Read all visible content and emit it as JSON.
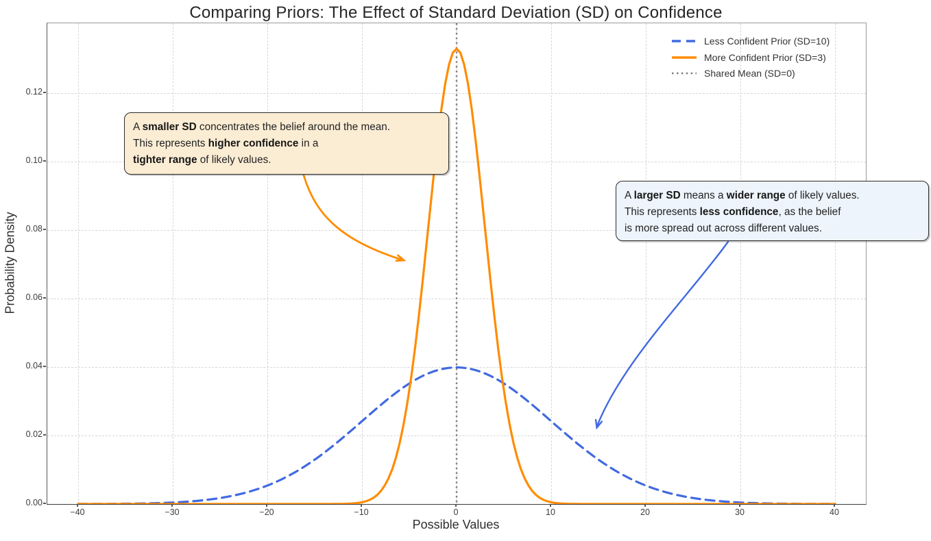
{
  "chart_data": {
    "type": "line",
    "title": "Comparing Priors: The Effect of Standard Deviation (SD) on Confidence",
    "xlabel": "Possible Values",
    "ylabel": "Probability Density",
    "xlim": [
      -43.26,
      43.26
    ],
    "ylim": [
      0,
      0.1404
    ],
    "xticks": [
      -40,
      -30,
      -20,
      -10,
      0,
      10,
      20,
      30,
      40
    ],
    "xtick_labels": [
      "−40",
      "−30",
      "−20",
      "−10",
      "0",
      "10",
      "20",
      "30",
      "40"
    ],
    "yticks": [
      0.0,
      0.02,
      0.04,
      0.06,
      0.08,
      0.1,
      0.12
    ],
    "ytick_labels": [
      "0.00",
      "0.02",
      "0.04",
      "0.06",
      "0.08",
      "0.10",
      "0.12"
    ],
    "grid": true,
    "grid_style": "dashed",
    "legend_position": "upper right",
    "series": [
      {
        "name": "Less Confident Prior (SD=10)",
        "distribution": "normal_pdf",
        "mean": 0,
        "sd": 10,
        "x_range": [
          -40,
          40
        ],
        "peak_density": 0.0399,
        "color": "#4169E1",
        "line_style": "dashed",
        "line_width": 3.2,
        "points_x": [
          -40,
          -35,
          -30,
          -25,
          -20,
          -15,
          -10,
          -5,
          0,
          5,
          10,
          15,
          20,
          25,
          30,
          35,
          40
        ],
        "points_y": [
          1.34e-05,
          8.73e-05,
          0.000443,
          0.00175,
          0.0054,
          0.01295,
          0.0242,
          0.03521,
          0.03989,
          0.03521,
          0.0242,
          0.01295,
          0.0054,
          0.00175,
          0.000443,
          8.73e-05,
          1.34e-05
        ]
      },
      {
        "name": "More Confident Prior (SD=3)",
        "distribution": "normal_pdf",
        "mean": 0,
        "sd": 3,
        "x_range": [
          -40,
          40
        ],
        "peak_density": 0.133,
        "color": "#FF8C00",
        "line_style": "solid",
        "line_width": 3.2,
        "points_x": [
          -40,
          -35,
          -30,
          -25,
          -20,
          -15,
          -10,
          -5,
          0,
          5,
          10,
          15,
          20,
          25,
          30,
          35,
          40
        ],
        "points_y": [
          0,
          0,
          0,
          0,
          0,
          0,
          0.00051,
          0.03316,
          0.13298,
          0.03316,
          0.00051,
          0,
          0,
          0,
          0,
          0,
          0
        ]
      }
    ],
    "vline": {
      "name": "Shared Mean (SD=0)",
      "x": 0,
      "color": "#808080",
      "line_style": "dotted",
      "line_width": 2.4
    }
  },
  "legend": {
    "items": [
      {
        "label": "Less Confident Prior (SD=10)",
        "color": "#4169E1",
        "style": "dashed"
      },
      {
        "label": "More Confident Prior (SD=3)",
        "color": "#FF8C00",
        "style": "solid"
      },
      {
        "label": "Shared Mean (SD=0)",
        "color": "#808080",
        "style": "dotted"
      }
    ]
  },
  "annotations": {
    "smaller_sd": {
      "bg": "#fbedd4",
      "arrow_color": "#FF8C00",
      "lines": [
        {
          "segs": [
            {
              "t": "A "
            },
            {
              "t": "smaller SD",
              "b": true
            },
            {
              "t": " concentrates the belief around the mean."
            }
          ]
        },
        {
          "segs": [
            {
              "t": "This represents "
            },
            {
              "t": "higher confidence",
              "b": true
            },
            {
              "t": " in a"
            }
          ]
        },
        {
          "segs": [
            {
              "t": "tighter range",
              "b": true
            },
            {
              "t": " of likely values."
            }
          ]
        }
      ]
    },
    "larger_sd": {
      "bg": "#edf4fb",
      "arrow_color": "#4169E1",
      "lines": [
        {
          "segs": [
            {
              "t": "A "
            },
            {
              "t": "larger SD",
              "b": true
            },
            {
              "t": " means a "
            },
            {
              "t": "wider range",
              "b": true
            },
            {
              "t": " of likely values."
            }
          ]
        },
        {
          "segs": [
            {
              "t": "This represents "
            },
            {
              "t": "less confidence",
              "b": true
            },
            {
              "t": ", as the belief"
            }
          ]
        },
        {
          "segs": [
            {
              "t": "is more spread out across different values."
            }
          ]
        }
      ]
    }
  }
}
